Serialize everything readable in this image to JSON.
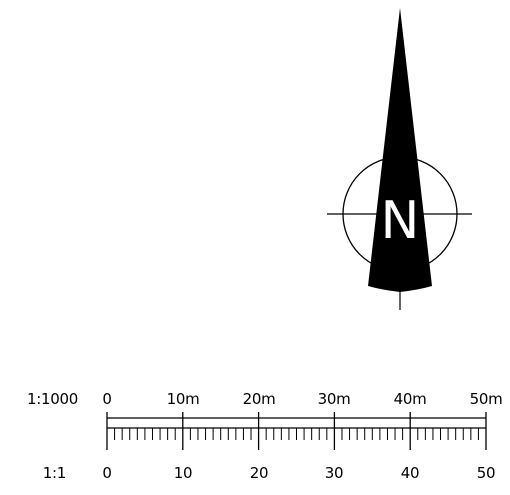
{
  "north_arrow": {
    "letter": "N"
  },
  "scale_bar": {
    "ratio_top": "1:1000",
    "ratio_bottom": "1:1",
    "top_labels": [
      "0",
      "10m",
      "20m",
      "30m",
      "40m",
      "50m"
    ],
    "bottom_labels": [
      "0",
      "10",
      "20",
      "30",
      "40",
      "50"
    ]
  },
  "colors": {
    "ink": "#000000",
    "background": "#ffffff"
  }
}
